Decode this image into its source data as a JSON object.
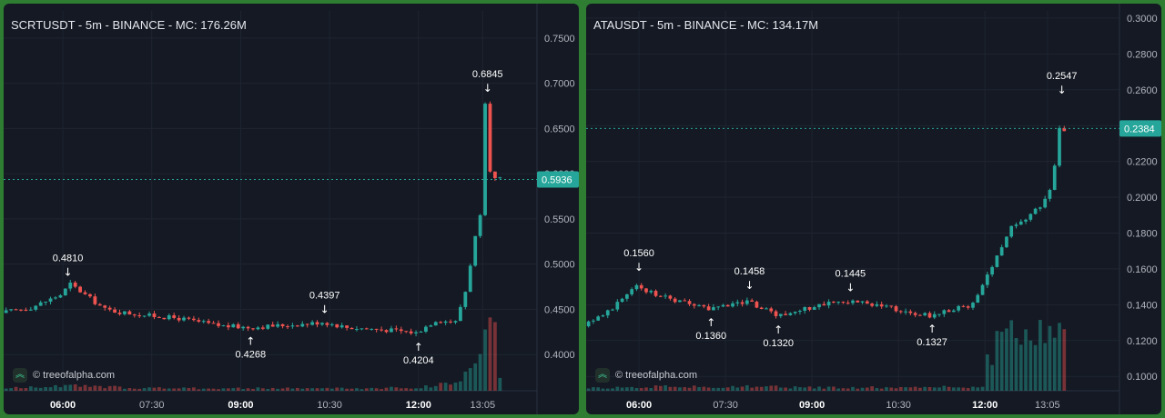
{
  "colors": {
    "background": "#141923",
    "grid": "#1f2531",
    "up": "#26a69a",
    "down": "#ef5350",
    "text": "#e6e8ee",
    "axis_text": "#b2b5be",
    "current_price": "#26a69a"
  },
  "watermark": {
    "text": "© treeofalpha.com",
    "icon": "double-chevron-up-icon"
  },
  "chart_data": [
    {
      "type": "candlestick",
      "title": "SCRTUSDT - 5m - BINANCE - MC: 176.26M",
      "y_ticks": [
        "0.7500",
        "0.7000",
        "0.6500",
        "0.6000",
        "0.5500",
        "0.5000",
        "0.4500",
        "0.4000"
      ],
      "ylim": [
        0.36,
        0.78
      ],
      "x_ticks": [
        "06:00",
        "07:30",
        "09:00",
        "10:30",
        "12:00",
        "13:05"
      ],
      "x_ticks_bold": [
        true,
        false,
        true,
        false,
        true,
        false
      ],
      "time_range": [
        "05:00",
        "14:00"
      ],
      "current_price": "0.5936",
      "current_value": 0.5936,
      "annotations": [
        {
          "time": "06:05",
          "value": 0.481,
          "label": "0.4810",
          "position": "above"
        },
        {
          "time": "09:10",
          "value": 0.4268,
          "label": "0.4268",
          "position": "below"
        },
        {
          "time": "10:25",
          "value": 0.4397,
          "label": "0.4397",
          "position": "above"
        },
        {
          "time": "12:00",
          "value": 0.4204,
          "label": "0.4204",
          "position": "below"
        },
        {
          "time": "13:10",
          "value": 0.6845,
          "label": "0.6845",
          "position": "above"
        }
      ],
      "price_path": [
        [
          "05:00",
          0.446
        ],
        [
          "05:30",
          0.452
        ],
        [
          "06:00",
          0.466
        ],
        [
          "06:10",
          0.478
        ],
        [
          "06:30",
          0.462
        ],
        [
          "06:45",
          0.45
        ],
        [
          "07:00",
          0.447
        ],
        [
          "07:30",
          0.443
        ],
        [
          "08:00",
          0.44
        ],
        [
          "08:20",
          0.436
        ],
        [
          "08:40",
          0.432
        ],
        [
          "09:10",
          0.43
        ],
        [
          "09:40",
          0.432
        ],
        [
          "10:10",
          0.434
        ],
        [
          "10:25",
          0.436
        ],
        [
          "10:50",
          0.43
        ],
        [
          "11:20",
          0.428
        ],
        [
          "11:45",
          0.426
        ],
        [
          "12:00",
          0.424
        ],
        [
          "12:20",
          0.438
        ],
        [
          "12:40",
          0.436
        ],
        [
          "12:50",
          0.47
        ],
        [
          "13:00",
          0.53
        ],
        [
          "13:08",
          0.565
        ],
        [
          "13:10",
          0.675
        ],
        [
          "13:15",
          0.6
        ],
        [
          "13:20",
          0.594
        ]
      ],
      "volume_path": [
        [
          "05:00",
          3
        ],
        [
          "06:00",
          6
        ],
        [
          "07:00",
          4
        ],
        [
          "08:00",
          3
        ],
        [
          "09:00",
          3
        ],
        [
          "10:00",
          3
        ],
        [
          "11:00",
          3
        ],
        [
          "12:00",
          4
        ],
        [
          "12:40",
          12
        ],
        [
          "12:50",
          30
        ],
        [
          "13:00",
          55
        ],
        [
          "13:05",
          75
        ],
        [
          "13:10",
          80
        ],
        [
          "13:15",
          70
        ],
        [
          "13:20",
          18
        ]
      ]
    },
    {
      "type": "candlestick",
      "title": "ATAUSDT - 5m - BINANCE - MC: 134.17M",
      "y_ticks": [
        "0.3000",
        "0.2800",
        "0.2600",
        "0.2400",
        "0.2200",
        "0.2000",
        "0.1800",
        "0.1600",
        "0.1400",
        "0.1200",
        "0.1000"
      ],
      "ylim": [
        0.092,
        0.304
      ],
      "x_ticks": [
        "06:00",
        "07:30",
        "09:00",
        "10:30",
        "12:00",
        "13:05"
      ],
      "x_ticks_bold": [
        true,
        false,
        true,
        false,
        true,
        false
      ],
      "time_range": [
        "05:05",
        "14:20"
      ],
      "current_price": "0.2384",
      "current_value": 0.2384,
      "annotations": [
        {
          "time": "06:00",
          "value": 0.156,
          "label": "0.1560",
          "position": "above"
        },
        {
          "time": "07:15",
          "value": 0.136,
          "label": "0.1360",
          "position": "below"
        },
        {
          "time": "07:55",
          "value": 0.1458,
          "label": "0.1458",
          "position": "above"
        },
        {
          "time": "08:25",
          "value": 0.132,
          "label": "0.1320",
          "position": "below"
        },
        {
          "time": "09:40",
          "value": 0.1445,
          "label": "0.1445",
          "position": "above"
        },
        {
          "time": "11:05",
          "value": 0.1327,
          "label": "0.1327",
          "position": "below"
        },
        {
          "time": "13:20",
          "value": 0.2547,
          "label": "0.2547",
          "position": "above"
        }
      ],
      "price_path": [
        [
          "05:05",
          0.128
        ],
        [
          "05:30",
          0.136
        ],
        [
          "05:50",
          0.146
        ],
        [
          "06:00",
          0.15
        ],
        [
          "06:20",
          0.146
        ],
        [
          "06:40",
          0.142
        ],
        [
          "07:15",
          0.138
        ],
        [
          "07:45",
          0.141
        ],
        [
          "07:55",
          0.142
        ],
        [
          "08:25",
          0.134
        ],
        [
          "08:50",
          0.137
        ],
        [
          "09:20",
          0.141
        ],
        [
          "09:40",
          0.142
        ],
        [
          "10:10",
          0.14
        ],
        [
          "10:40",
          0.136
        ],
        [
          "11:05",
          0.134
        ],
        [
          "11:30",
          0.138
        ],
        [
          "11:50",
          0.14
        ],
        [
          "12:00",
          0.15
        ],
        [
          "12:15",
          0.168
        ],
        [
          "12:30",
          0.183
        ],
        [
          "12:45",
          0.188
        ],
        [
          "13:00",
          0.195
        ],
        [
          "13:10",
          0.205
        ],
        [
          "13:15",
          0.218
        ],
        [
          "13:20",
          0.238
        ]
      ],
      "volume_path": [
        [
          "05:05",
          4
        ],
        [
          "06:00",
          5
        ],
        [
          "07:00",
          5
        ],
        [
          "08:00",
          5
        ],
        [
          "09:00",
          4
        ],
        [
          "10:00",
          4
        ],
        [
          "11:00",
          4
        ],
        [
          "11:55",
          6
        ],
        [
          "12:00",
          35
        ],
        [
          "12:15",
          78
        ],
        [
          "12:30",
          55
        ],
        [
          "12:45",
          65
        ],
        [
          "13:00",
          75
        ],
        [
          "13:10",
          60
        ],
        [
          "13:20",
          78
        ]
      ]
    }
  ]
}
